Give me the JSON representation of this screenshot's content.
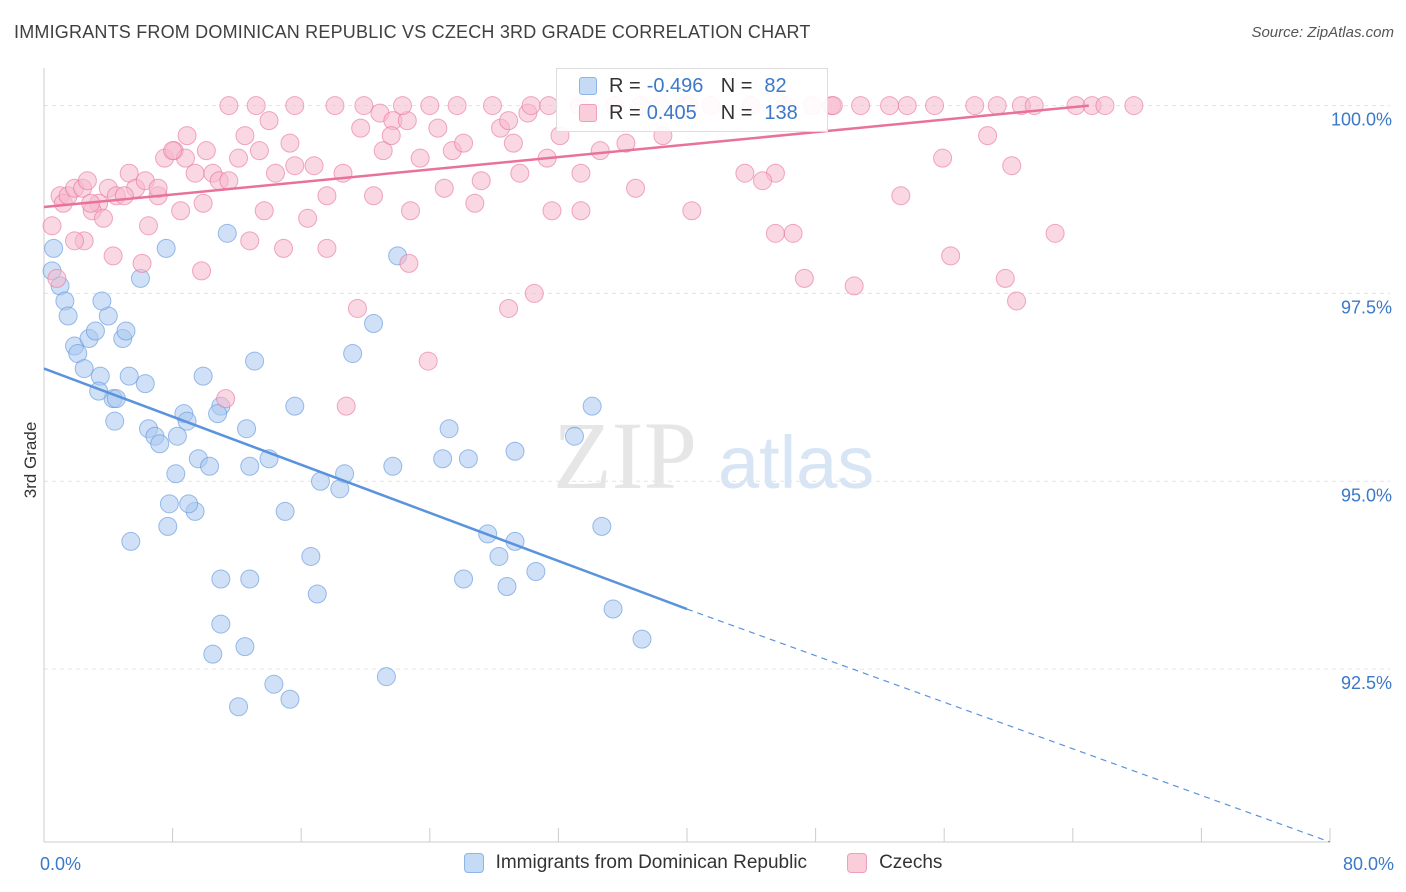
{
  "header": {
    "title": "IMMIGRANTS FROM DOMINICAN REPUBLIC VS CZECH 3RD GRADE CORRELATION CHART",
    "source": "Source: ZipAtlas.com"
  },
  "watermark": {
    "zip": "ZIP",
    "atlas": "atlas"
  },
  "legend_top": [
    {
      "r_label": "R =",
      "r_value": "-0.496",
      "n_label": "N =",
      "n_value": "82",
      "color": "#a9c8f0"
    },
    {
      "r_label": "R =",
      "r_value": "0.405",
      "n_label": "N =",
      "n_value": "138",
      "color": "#f5b8cc"
    }
  ],
  "legend_bottom": [
    {
      "label": "Immigrants from Dominican Republic",
      "color": "#a9c8f0"
    },
    {
      "label": "Czechs",
      "color": "#f5b8cc"
    }
  ],
  "chart_data": {
    "type": "scatter",
    "title": "IMMIGRANTS FROM DOMINICAN REPUBLIC VS CZECH 3RD GRADE CORRELATION CHART",
    "xlabel": "",
    "ylabel": "3rd Grade",
    "xlim": [
      0,
      80
    ],
    "ylim": [
      90.2,
      100.5
    ],
    "x_tick_labels": [
      {
        "value": 0,
        "label": "0.0%"
      },
      {
        "value": 80,
        "label": "80.0%"
      }
    ],
    "y_tick_labels": [
      {
        "value": 100.0,
        "label": "100.0%"
      },
      {
        "value": 97.5,
        "label": "97.5%"
      },
      {
        "value": 95.0,
        "label": "95.0%"
      },
      {
        "value": 92.5,
        "label": "92.5%"
      }
    ],
    "grid": true,
    "legend_position": "top-center",
    "series": [
      {
        "name": "Immigrants from Dominican Republic",
        "color": "#5b93dc",
        "fill": "#a9c8f0",
        "trend": {
          "x0": 0,
          "y0": 96.5,
          "x1": 40,
          "y1": 93.3,
          "dashed_to_x": 80,
          "dashed_to_y": 90.2
        },
        "points": [
          [
            0.5,
            97.8
          ],
          [
            0.6,
            98.1
          ],
          [
            1.0,
            97.6
          ],
          [
            1.3,
            97.4
          ],
          [
            1.5,
            97.2
          ],
          [
            1.9,
            96.8
          ],
          [
            2.1,
            96.7
          ],
          [
            2.8,
            96.9
          ],
          [
            3.2,
            97.0
          ],
          [
            2.5,
            96.5
          ],
          [
            3.5,
            96.4
          ],
          [
            4.0,
            97.2
          ],
          [
            4.9,
            96.9
          ],
          [
            5.1,
            97.0
          ],
          [
            4.3,
            96.1
          ],
          [
            3.4,
            96.2
          ],
          [
            4.5,
            96.1
          ],
          [
            6.3,
            96.3
          ],
          [
            5.3,
            96.4
          ],
          [
            4.4,
            95.8
          ],
          [
            6.5,
            95.7
          ],
          [
            6.9,
            95.6
          ],
          [
            7.2,
            95.5
          ],
          [
            8.7,
            95.9
          ],
          [
            8.9,
            95.8
          ],
          [
            9.9,
            96.4
          ],
          [
            11.0,
            96.0
          ],
          [
            10.8,
            95.9
          ],
          [
            8.3,
            95.6
          ],
          [
            9.6,
            95.3
          ],
          [
            10.3,
            95.2
          ],
          [
            8.2,
            95.1
          ],
          [
            12.6,
            95.7
          ],
          [
            14.0,
            95.3
          ],
          [
            12.8,
            95.2
          ],
          [
            13.1,
            96.6
          ],
          [
            15.6,
            96.0
          ],
          [
            17.2,
            95.0
          ],
          [
            18.7,
            95.1
          ],
          [
            18.4,
            94.9
          ],
          [
            19.2,
            96.7
          ],
          [
            20.5,
            97.1
          ],
          [
            22.0,
            98.0
          ],
          [
            21.7,
            95.2
          ],
          [
            24.8,
            95.3
          ],
          [
            26.4,
            95.3
          ],
          [
            25.2,
            95.7
          ],
          [
            29.3,
            95.4
          ],
          [
            33.0,
            95.6
          ],
          [
            34.1,
            96.0
          ],
          [
            6.0,
            97.7
          ],
          [
            7.6,
            98.1
          ],
          [
            11.4,
            98.3
          ],
          [
            3.6,
            97.4
          ],
          [
            7.8,
            94.7
          ],
          [
            9.4,
            94.6
          ],
          [
            9.0,
            94.7
          ],
          [
            7.7,
            94.4
          ],
          [
            15.0,
            94.6
          ],
          [
            5.4,
            94.2
          ],
          [
            16.6,
            94.0
          ],
          [
            27.6,
            94.3
          ],
          [
            29.3,
            94.2
          ],
          [
            28.3,
            94.0
          ],
          [
            30.6,
            93.8
          ],
          [
            34.7,
            94.4
          ],
          [
            11.0,
            93.7
          ],
          [
            12.8,
            93.7
          ],
          [
            26.1,
            93.7
          ],
          [
            28.8,
            93.6
          ],
          [
            17.0,
            93.5
          ],
          [
            35.4,
            93.3
          ],
          [
            11.0,
            93.1
          ],
          [
            37.2,
            92.9
          ],
          [
            10.5,
            92.7
          ],
          [
            12.5,
            92.8
          ],
          [
            14.3,
            92.3
          ],
          [
            21.3,
            92.4
          ],
          [
            15.3,
            92.1
          ],
          [
            12.1,
            92.0
          ]
        ]
      },
      {
        "name": "Czechs",
        "color": "#e8729a",
        "fill": "#f5b8cc",
        "trend": {
          "x0": 0,
          "y0": 98.65,
          "x1": 65,
          "y1": 100.0
        },
        "points": [
          [
            0.5,
            98.4
          ],
          [
            0.8,
            97.7
          ],
          [
            1.0,
            98.8
          ],
          [
            1.2,
            98.7
          ],
          [
            1.5,
            98.8
          ],
          [
            1.9,
            98.9
          ],
          [
            2.4,
            98.9
          ],
          [
            2.7,
            99.0
          ],
          [
            3.4,
            98.7
          ],
          [
            4.0,
            98.9
          ],
          [
            3.0,
            98.6
          ],
          [
            2.5,
            98.2
          ],
          [
            4.5,
            98.8
          ],
          [
            5.3,
            99.1
          ],
          [
            5.7,
            98.9
          ],
          [
            6.3,
            99.0
          ],
          [
            7.5,
            99.3
          ],
          [
            8.1,
            99.4
          ],
          [
            8.8,
            99.3
          ],
          [
            9.4,
            99.1
          ],
          [
            10.1,
            99.4
          ],
          [
            7.1,
            98.8
          ],
          [
            8.5,
            98.6
          ],
          [
            6.5,
            98.4
          ],
          [
            10.5,
            99.1
          ],
          [
            10.9,
            99.0
          ],
          [
            12.1,
            99.3
          ],
          [
            12.5,
            99.6
          ],
          [
            13.4,
            99.4
          ],
          [
            14.0,
            99.8
          ],
          [
            15.3,
            99.5
          ],
          [
            15.6,
            99.2
          ],
          [
            16.8,
            99.2
          ],
          [
            18.6,
            99.1
          ],
          [
            17.6,
            98.8
          ],
          [
            19.7,
            99.7
          ],
          [
            20.9,
            99.9
          ],
          [
            21.7,
            99.8
          ],
          [
            22.6,
            99.8
          ],
          [
            21.1,
            99.4
          ],
          [
            20.5,
            98.8
          ],
          [
            22.8,
            98.6
          ],
          [
            24.5,
            99.7
          ],
          [
            25.4,
            99.4
          ],
          [
            24.9,
            98.9
          ],
          [
            26.8,
            98.7
          ],
          [
            27.2,
            99.0
          ],
          [
            28.4,
            99.7
          ],
          [
            28.9,
            99.8
          ],
          [
            30.1,
            99.9
          ],
          [
            29.6,
            99.1
          ],
          [
            31.3,
            99.3
          ],
          [
            31.6,
            98.6
          ],
          [
            33.4,
            99.1
          ],
          [
            34.6,
            99.4
          ],
          [
            36.2,
            99.5
          ],
          [
            38.3,
            100.0
          ],
          [
            40.1,
            100.0
          ],
          [
            38.5,
            99.6
          ],
          [
            40.3,
            98.6
          ],
          [
            43.6,
            99.1
          ],
          [
            45.5,
            99.1
          ],
          [
            46.6,
            98.3
          ],
          [
            47.3,
            97.7
          ],
          [
            49.0,
            100.0
          ],
          [
            52.6,
            100.0
          ],
          [
            55.9,
            99.3
          ],
          [
            57.9,
            100.0
          ],
          [
            60.2,
            99.2
          ],
          [
            60.5,
            97.4
          ],
          [
            64.2,
            100.0
          ],
          [
            65.2,
            100.0
          ],
          [
            66.0,
            100.0
          ],
          [
            67.8,
            100.0
          ],
          [
            11.5,
            100.0
          ],
          [
            13.2,
            100.0
          ],
          [
            15.6,
            100.0
          ],
          [
            18.1,
            100.0
          ],
          [
            19.9,
            100.0
          ],
          [
            22.3,
            100.0
          ],
          [
            24.0,
            100.0
          ],
          [
            25.7,
            100.0
          ],
          [
            27.9,
            100.0
          ],
          [
            30.3,
            100.0
          ],
          [
            31.4,
            100.0
          ],
          [
            33.3,
            100.0
          ],
          [
            35.5,
            100.0
          ],
          [
            37.1,
            100.0
          ],
          [
            39.9,
            100.0
          ],
          [
            41.5,
            100.0
          ],
          [
            44.0,
            100.0
          ],
          [
            46.1,
            100.0
          ],
          [
            47.8,
            100.0
          ],
          [
            49.1,
            100.0
          ],
          [
            50.8,
            100.0
          ],
          [
            53.7,
            100.0
          ],
          [
            55.4,
            100.0
          ],
          [
            59.3,
            100.0
          ],
          [
            60.8,
            100.0
          ],
          [
            61.6,
            100.0
          ],
          [
            1.9,
            98.2
          ],
          [
            4.3,
            98.0
          ],
          [
            6.1,
            97.9
          ],
          [
            9.8,
            97.8
          ],
          [
            12.8,
            98.2
          ],
          [
            14.9,
            98.1
          ],
          [
            11.5,
            99.0
          ],
          [
            13.7,
            98.6
          ],
          [
            17.6,
            98.1
          ],
          [
            19.5,
            97.3
          ],
          [
            22.7,
            97.9
          ],
          [
            11.3,
            96.1
          ],
          [
            18.8,
            96.0
          ],
          [
            23.9,
            96.6
          ],
          [
            28.9,
            97.3
          ],
          [
            30.5,
            97.5
          ],
          [
            33.4,
            98.6
          ],
          [
            36.8,
            98.9
          ],
          [
            44.7,
            99.0
          ],
          [
            45.5,
            98.3
          ],
          [
            50.4,
            97.6
          ],
          [
            53.3,
            98.8
          ],
          [
            56.4,
            98.0
          ],
          [
            58.7,
            99.6
          ],
          [
            59.8,
            97.7
          ],
          [
            62.9,
            98.3
          ],
          [
            16.4,
            98.5
          ],
          [
            21.6,
            99.6
          ],
          [
            26.1,
            99.5
          ],
          [
            29.2,
            99.5
          ],
          [
            32.1,
            99.6
          ],
          [
            23.4,
            99.3
          ],
          [
            14.4,
            99.1
          ],
          [
            9.9,
            98.7
          ],
          [
            7.1,
            98.9
          ],
          [
            5.0,
            98.8
          ],
          [
            2.9,
            98.7
          ],
          [
            3.7,
            98.5
          ],
          [
            8.0,
            99.4
          ],
          [
            8.9,
            99.6
          ]
        ]
      }
    ]
  }
}
